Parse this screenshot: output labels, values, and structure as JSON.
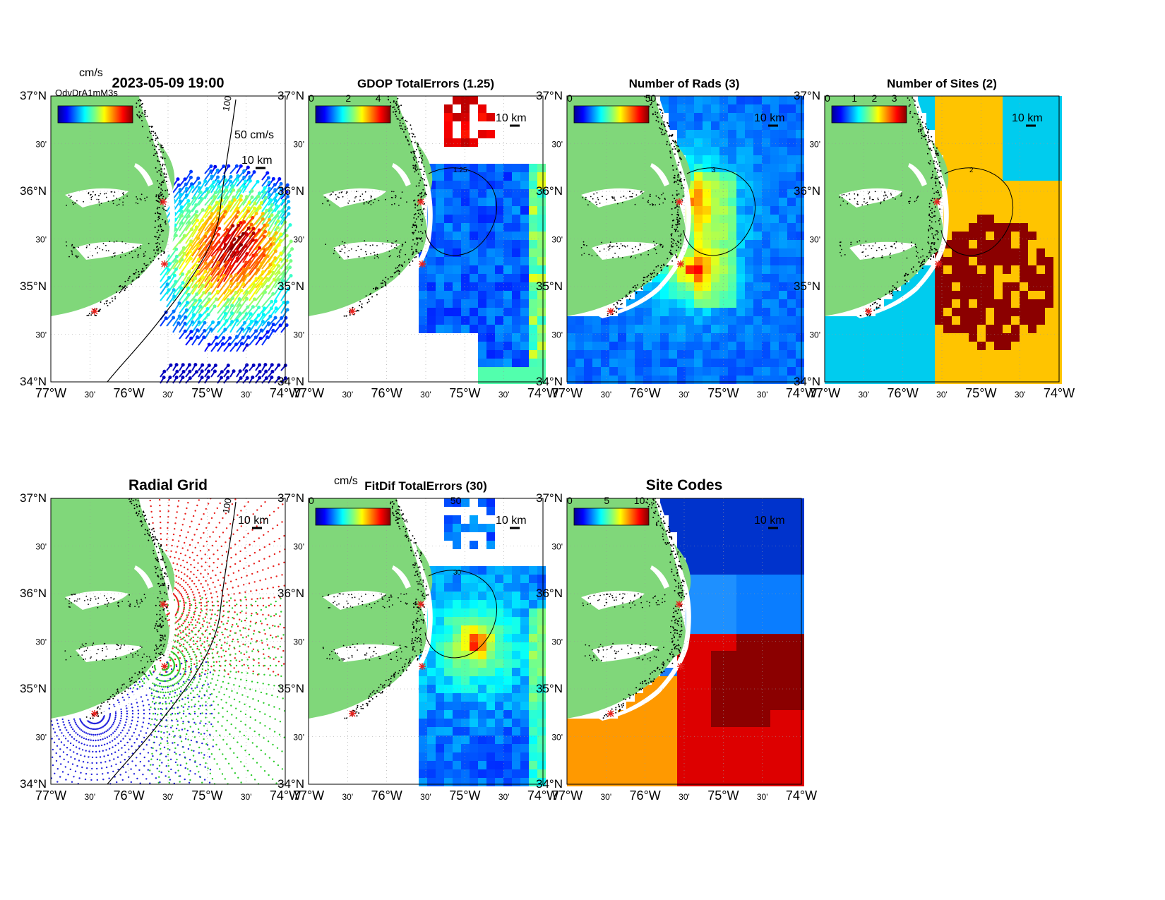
{
  "panels": [
    {
      "id": "currents",
      "title": "2023-05-09 19:00",
      "cbar_unit": "cm/s",
      "cbar_ticks": [],
      "scale_label": "50 cm/s",
      "km_label": "10 km",
      "contour_label": "100",
      "overlap_text": "OdvDrA1mM3s"
    },
    {
      "id": "gdop",
      "title": "GDOP TotalErrors (1.25)",
      "cbar_unit": "",
      "cbar_ticks": [
        "0",
        "2",
        "4"
      ],
      "km_label": "10 km",
      "contour_label": "1.25"
    },
    {
      "id": "nrads",
      "title": "Number of Rads (3)",
      "cbar_unit": "",
      "cbar_ticks": [
        "0",
        "50"
      ],
      "km_label": "10 km",
      "contour_label": "3"
    },
    {
      "id": "nsites",
      "title": "Number of Sites (2)",
      "cbar_unit": "",
      "cbar_ticks": [
        "0",
        "1",
        "2",
        "3"
      ],
      "km_label": "10 km",
      "contour_label": "2"
    },
    {
      "id": "radgrid",
      "title": "Radial Grid",
      "cbar_unit": "",
      "cbar_ticks": [],
      "km_label": "10 km",
      "contour_label": "100"
    },
    {
      "id": "fitdif",
      "title": "FitDif TotalErrors (30)",
      "cbar_unit": "cm/s",
      "cbar_ticks": [
        "0",
        "50"
      ],
      "km_label": "10 km",
      "contour_label": "30"
    },
    {
      "id": "sitecodes",
      "title": "Site Codes",
      "cbar_unit": "",
      "cbar_ticks": [
        "0",
        "5",
        "10"
      ],
      "km_label": "10 km",
      "contour_label": ""
    }
  ],
  "axes": {
    "lat_labels": [
      "37°N",
      "30'",
      "36°N",
      "30'",
      "35°N",
      "30'",
      "34°N"
    ],
    "lon_labels": [
      "77°W",
      "30'",
      "76°W",
      "30'",
      "75°W",
      "30'",
      "74°W"
    ]
  },
  "colors": {
    "land": "#80d77a",
    "site_marker": "#e8201c",
    "coast_dots": "#000000"
  }
}
